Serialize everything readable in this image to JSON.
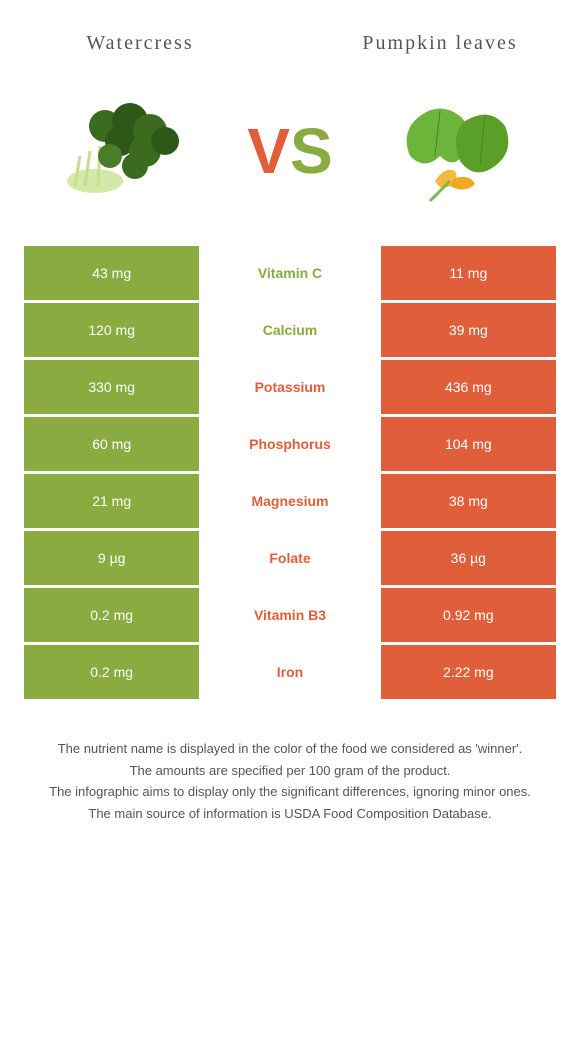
{
  "colors": {
    "green": "#8aab3f",
    "orange": "#e15e3b",
    "text": "#555555"
  },
  "header": {
    "left": "Watercress",
    "right": "Pumpkin leaves"
  },
  "vs": {
    "v": "V",
    "s": "S"
  },
  "rows": [
    {
      "left": "43 mg",
      "label": "Vitamin C",
      "right": "11 mg",
      "winner": "left"
    },
    {
      "left": "120 mg",
      "label": "Calcium",
      "right": "39 mg",
      "winner": "left"
    },
    {
      "left": "330 mg",
      "label": "Potassium",
      "right": "436 mg",
      "winner": "right"
    },
    {
      "left": "60 mg",
      "label": "Phosphorus",
      "right": "104 mg",
      "winner": "right"
    },
    {
      "left": "21 mg",
      "label": "Magnesium",
      "right": "38 mg",
      "winner": "right"
    },
    {
      "left": "9 µg",
      "label": "Folate",
      "right": "36 µg",
      "winner": "right"
    },
    {
      "left": "0.2 mg",
      "label": "Vitamin B3",
      "right": "0.92 mg",
      "winner": "right"
    },
    {
      "left": "0.2 mg",
      "label": "Iron",
      "right": "2.22 mg",
      "winner": "right"
    }
  ],
  "footer": [
    "The nutrient name is displayed in the color of the food we considered as 'winner'.",
    "The amounts are specified per 100 gram of the product.",
    "The infographic aims to display only the significant differences, ignoring minor ones.",
    "The main source of information is USDA Food Composition Database."
  ]
}
